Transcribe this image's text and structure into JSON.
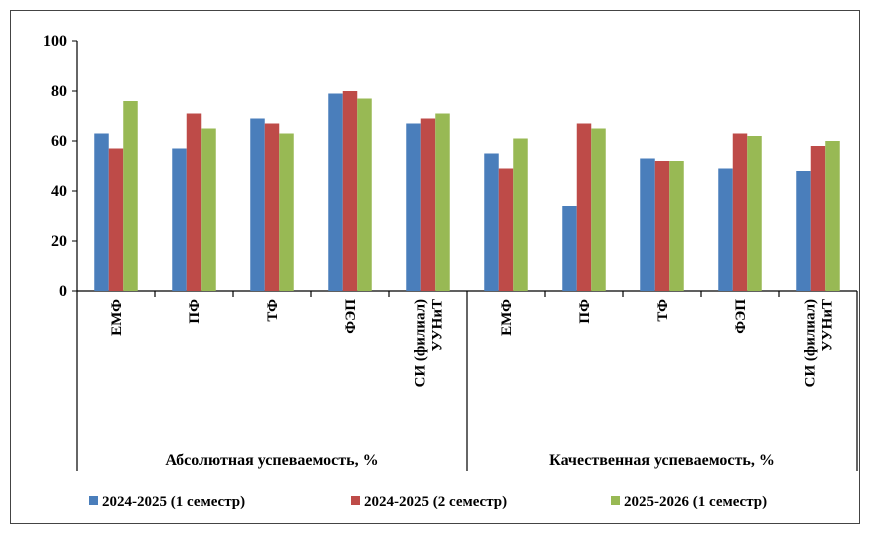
{
  "chart_data": {
    "type": "bar",
    "groups": [
      {
        "label": "Абсолютная успеваемость, %",
        "categories": [
          "ЕМФ",
          "ПФ",
          "ТФ",
          "ФЭП",
          "СИ (филиал)\nУУНиТ"
        ]
      },
      {
        "label": "Качественная успеваемость, %",
        "categories": [
          "ЕМФ",
          "ПФ",
          "ТФ",
          "ФЭП",
          "СИ (филиал)\nУУНиТ"
        ]
      }
    ],
    "series": [
      {
        "name": "2024-2025 (1 семестр)",
        "color": "#4a7ebb",
        "values": [
          63,
          57,
          69,
          79,
          67,
          55,
          34,
          53,
          49,
          48
        ]
      },
      {
        "name": "2024-2025 (2 семестр)",
        "color": "#be4b48",
        "values": [
          57,
          71,
          67,
          80,
          69,
          49,
          67,
          52,
          63,
          58
        ]
      },
      {
        "name": "2025-2026 (1 семестр)",
        "color": "#98b954",
        "values": [
          76,
          65,
          63,
          77,
          71,
          61,
          65,
          52,
          62,
          60
        ]
      }
    ],
    "ylim": [
      0,
      100
    ],
    "yticks": [
      0,
      20,
      40,
      60,
      80,
      100
    ],
    "grid": false,
    "legend": "bottom",
    "title": "",
    "xlabel": "",
    "ylabel": ""
  }
}
